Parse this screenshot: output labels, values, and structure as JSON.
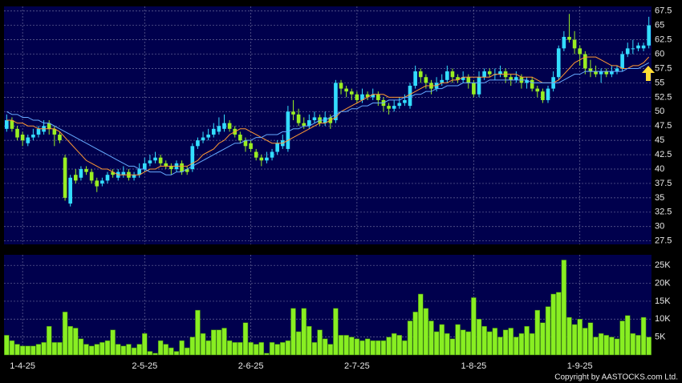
{
  "chart_data": [
    {
      "type": "candlestick",
      "ylim": [
        26.9,
        68.3
      ],
      "yticks": [
        27.5,
        30,
        32.5,
        35,
        37.5,
        40,
        42.5,
        45,
        47.5,
        50,
        52.5,
        55,
        57.5,
        60,
        62.5,
        65,
        67.5
      ],
      "grid": true,
      "up_color": "#33ddff",
      "down_color": "#99ee22",
      "open": [
        47,
        48.5,
        47,
        46,
        44.5,
        45.5,
        46,
        46.5,
        48,
        47,
        46,
        42,
        34,
        39,
        38.5,
        40,
        39.5,
        38,
        37.5,
        38,
        39.5,
        38.5,
        39,
        39.5,
        38.5,
        39,
        40,
        41,
        41.5,
        42,
        41,
        40.5,
        40,
        41,
        40,
        40,
        44,
        45,
        45.5,
        46,
        46.5,
        47,
        48,
        47,
        46,
        45,
        44.5,
        43,
        42,
        41.5,
        42,
        43,
        44,
        43.5,
        50,
        49.5,
        48,
        47.5,
        48.5,
        49,
        48,
        49,
        48.5,
        55,
        54,
        53.5,
        53,
        52,
        53,
        52.5,
        53,
        52,
        51,
        50.5,
        51,
        51.5,
        51,
        54.5,
        57,
        56,
        55,
        54,
        55,
        55.5,
        57,
        56,
        55.5,
        56,
        55,
        53,
        56,
        57,
        56.5,
        56.5,
        57,
        56,
        55.5,
        56,
        55,
        55.5,
        54,
        53.5,
        52,
        54,
        56,
        61,
        63,
        62.5,
        61,
        60,
        57.5,
        57,
        56.5,
        57,
        56.5,
        57,
        57.5,
        60,
        61,
        61,
        61,
        61.5
      ],
      "high": [
        49.5,
        49,
        47.5,
        46.5,
        46,
        47,
        47.5,
        48.5,
        48.5,
        47.5,
        46.5,
        42.5,
        39,
        40,
        40.5,
        40.5,
        40,
        38.5,
        38.5,
        39.5,
        40,
        40,
        40.5,
        40,
        39.5,
        41,
        42,
        42.5,
        43,
        42.5,
        41.5,
        41,
        41.5,
        41.5,
        40.5,
        44.5,
        45.5,
        46.5,
        47,
        48,
        49,
        49.5,
        48.5,
        47.5,
        46.5,
        45.5,
        45,
        43.5,
        42.5,
        43,
        43.5,
        45,
        46,
        51,
        52,
        50.5,
        49,
        49.5,
        50,
        49.5,
        50,
        49.5,
        55.5,
        55.5,
        54.5,
        54,
        53.5,
        54,
        53.5,
        54,
        53.5,
        52.5,
        51.5,
        52,
        52.5,
        53,
        55,
        58,
        57.5,
        56.5,
        55.5,
        56,
        56.5,
        58,
        57.5,
        56.5,
        57,
        56.5,
        55.5,
        57,
        57.5,
        57.5,
        57.5,
        58,
        57.5,
        56.5,
        57,
        56.5,
        56,
        56,
        54.5,
        54,
        54.5,
        57,
        61.5,
        64,
        67,
        64,
        61.5,
        60.5,
        59,
        58,
        57.5,
        57.5,
        58,
        58,
        60.5,
        62,
        62.5,
        62,
        62,
        66.5
      ],
      "low": [
        46.5,
        46.5,
        45,
        44,
        44,
        45,
        45.5,
        46,
        46,
        44,
        44.5,
        34.5,
        33.5,
        37.5,
        38,
        39,
        37.5,
        36,
        37,
        37.5,
        38.5,
        38,
        38.5,
        38,
        38,
        38.5,
        39.5,
        40.5,
        41,
        40.5,
        40,
        39,
        39.5,
        39,
        39,
        39.5,
        43.5,
        44.5,
        45,
        45.5,
        46,
        46.5,
        46.5,
        45.5,
        44.5,
        43,
        43,
        41.5,
        40.5,
        41,
        41.5,
        42.5,
        43.5,
        43,
        48.5,
        47.5,
        47,
        47,
        48,
        47.5,
        47.5,
        47,
        48,
        53,
        52.5,
        52,
        51.5,
        51.5,
        52,
        52,
        51,
        50,
        49.5,
        50,
        50.5,
        51,
        50.5,
        54,
        55,
        54,
        53,
        53.5,
        54.5,
        55,
        55,
        55,
        55,
        54,
        52.5,
        52.5,
        55.5,
        56,
        55.5,
        56,
        55,
        54.5,
        55,
        54,
        54,
        53.5,
        52.5,
        51.5,
        51.5,
        53.5,
        55.5,
        60.5,
        62,
        60,
        58,
        56.5,
        56,
        56,
        55,
        56,
        56,
        56.5,
        57,
        59.5,
        60,
        60.5,
        60.5,
        61
      ],
      "close": [
        48.5,
        47,
        45.5,
        45,
        45.5,
        46,
        47,
        47.5,
        47,
        46,
        45,
        35,
        38.5,
        38,
        40,
        39.5,
        38,
        37,
        38,
        39,
        39,
        39.5,
        39.5,
        38.5,
        39,
        40,
        41,
        41.5,
        42,
        41,
        40.5,
        40,
        41,
        39.5,
        39.5,
        44,
        45,
        45.5,
        46,
        47,
        47.5,
        48,
        47,
        46,
        45,
        44,
        43.5,
        42,
        41.5,
        42,
        43,
        44.5,
        45,
        50,
        49.5,
        48,
        47.5,
        48.5,
        49,
        48,
        49,
        48,
        55,
        54,
        53.5,
        53,
        52,
        53,
        52.5,
        53,
        52,
        51,
        50.5,
        51,
        51.5,
        52,
        54.5,
        57,
        56,
        55,
        54,
        55,
        55.5,
        57,
        56,
        55.5,
        56,
        55,
        53,
        56,
        57,
        56.5,
        56.5,
        57,
        56,
        55.5,
        56,
        55,
        55.5,
        54,
        53.5,
        52,
        54,
        56,
        61,
        63,
        62.5,
        61,
        60,
        57.5,
        57,
        56.5,
        57,
        56.5,
        57,
        57.5,
        60,
        61,
        61,
        61.5,
        61.5,
        65
      ],
      "lines": [
        {
          "color": "#ff9933",
          "values": [
            48.5,
            48.5,
            48,
            48,
            47.5,
            47.5,
            47,
            47,
            47,
            47,
            46.5,
            45.5,
            44.5,
            43.5,
            42.5,
            41.5,
            41,
            40.5,
            40,
            40,
            39.5,
            39,
            39,
            39,
            39,
            39,
            39.5,
            40,
            40,
            40.5,
            40.5,
            40.5,
            40.5,
            40.5,
            40.5,
            41,
            41.5,
            42.5,
            43,
            43.5,
            44.5,
            45,
            46,
            46.5,
            47,
            47,
            46.5,
            46,
            45.5,
            45,
            44.5,
            44.5,
            44.5,
            45,
            45.5,
            46,
            46.5,
            47,
            47.5,
            48,
            48,
            48.5,
            49,
            50,
            50.5,
            51,
            51.5,
            52,
            52.5,
            53,
            53,
            53,
            52.5,
            52.5,
            52.5,
            52.5,
            53,
            53.5,
            54,
            54.5,
            54.5,
            54.5,
            55,
            55,
            55.5,
            55.5,
            56,
            56,
            56,
            56,
            56,
            56,
            56.5,
            56.5,
            56.5,
            56.5,
            56.5,
            56,
            56,
            56,
            55.5,
            55,
            55,
            55,
            55.5,
            56.5,
            57.5,
            58.5,
            59,
            59.5,
            59.5,
            59.5,
            59,
            58.5,
            58,
            58,
            57.5,
            57.5,
            58,
            58,
            58.5,
            59.5
          ]
        },
        {
          "color": "#66aaff",
          "values": [
            50,
            49.5,
            49.5,
            49,
            49,
            48.5,
            48.5,
            48,
            48,
            47.5,
            47,
            46.5,
            46,
            45.5,
            45,
            44.5,
            44,
            43.5,
            43,
            42.5,
            42,
            41.5,
            41,
            40.5,
            40.5,
            40,
            40,
            39.5,
            39.5,
            39.5,
            39,
            39,
            39.5,
            39.5,
            40,
            40.5,
            41,
            41.5,
            42,
            42.5,
            43,
            43.5,
            44,
            44.5,
            44.5,
            45,
            45,
            45.5,
            45.5,
            46,
            46,
            46,
            46.5,
            46.5,
            47,
            47,
            47.5,
            47.5,
            48,
            48.5,
            48.5,
            49,
            49.5,
            50,
            50,
            50.5,
            50.5,
            51,
            51,
            51.5,
            51.5,
            51.5,
            52,
            52,
            52,
            52.5,
            52.5,
            53,
            53,
            53.5,
            53.5,
            54,
            54,
            54.5,
            54.5,
            54.5,
            55,
            55,
            55,
            55,
            55,
            55.5,
            55.5,
            55.5,
            55.5,
            55.5,
            55.5,
            55.5,
            55.5,
            55,
            55,
            55,
            55,
            55,
            55,
            55.5,
            56,
            56.5,
            56.5,
            57,
            57,
            57,
            57,
            57,
            57,
            57,
            57,
            57.5,
            57.5,
            57.5,
            58,
            58.5
          ]
        }
      ]
    },
    {
      "type": "bar",
      "color": "#88ee22",
      "ylim": [
        0,
        27950
      ],
      "yticks": [
        {
          "value": 5000,
          "label": "5K"
        },
        {
          "value": 10000,
          "label": "10K"
        },
        {
          "value": 15000,
          "label": "15K"
        },
        {
          "value": 20000,
          "label": "20K"
        },
        {
          "value": 25000,
          "label": "25K"
        }
      ],
      "grid": true,
      "categories": [
        null,
        null,
        null,
        "1-4-25",
        null,
        null,
        null,
        null,
        null,
        null,
        null,
        null,
        null,
        null,
        null,
        null,
        null,
        null,
        null,
        null,
        null,
        null,
        null,
        null,
        null,
        null,
        "2-5-25",
        null,
        null,
        null,
        null,
        null,
        null,
        null,
        null,
        null,
        null,
        null,
        null,
        null,
        null,
        null,
        null,
        null,
        null,
        null,
        "2-6-25",
        null,
        null,
        null,
        null,
        null,
        null,
        null,
        null,
        null,
        null,
        null,
        null,
        null,
        null,
        null,
        null,
        null,
        null,
        null,
        "2-7-25",
        null,
        null,
        null,
        null,
        null,
        null,
        null,
        null,
        null,
        null,
        null,
        null,
        null,
        null,
        null,
        null,
        null,
        null,
        null,
        null,
        null,
        "1-8-25",
        null,
        null,
        null,
        null,
        null,
        null,
        null,
        null,
        null,
        null,
        null,
        null,
        null,
        null,
        null,
        null,
        null,
        null,
        null,
        "1-9-25",
        null,
        null,
        null,
        null,
        null,
        null,
        null,
        null,
        null,
        null,
        null,
        null,
        null
      ],
      "values": [
        5500,
        4000,
        3000,
        2500,
        2500,
        2500,
        3000,
        3500,
        8000,
        3500,
        3500,
        12000,
        8000,
        7500,
        4500,
        3000,
        2500,
        3000,
        3500,
        4000,
        7000,
        3000,
        2500,
        3000,
        2000,
        3000,
        6000,
        1000,
        500,
        4000,
        3000,
        2000,
        1000,
        4000,
        2000,
        5000,
        12500,
        6000,
        4000,
        7000,
        7000,
        7500,
        4000,
        3500,
        3500,
        9000,
        3500,
        3000,
        3500,
        500,
        3500,
        3000,
        3500,
        4000,
        13000,
        6500,
        13000,
        8000,
        3500,
        7000,
        4500,
        3000,
        13000,
        5500,
        5500,
        5000,
        4500,
        4000,
        4500,
        4000,
        4000,
        4000,
        5000,
        6000,
        5500,
        4000,
        9500,
        12000,
        17000,
        13000,
        9500,
        6500,
        8500,
        6000,
        4500,
        8500,
        7000,
        6500,
        16000,
        10000,
        8000,
        6500,
        7500,
        5000,
        7000,
        7500,
        5000,
        6000,
        8000,
        6000,
        12500,
        9000,
        13500,
        17000,
        17500,
        26500,
        10500,
        8500,
        10000,
        7500,
        9000,
        5000,
        6000,
        5500,
        5000,
        4500,
        9500,
        11000,
        6000,
        5500,
        10500,
        5000
      ]
    }
  ],
  "footer": "Copyright by AASTOCKS.com Ltd."
}
